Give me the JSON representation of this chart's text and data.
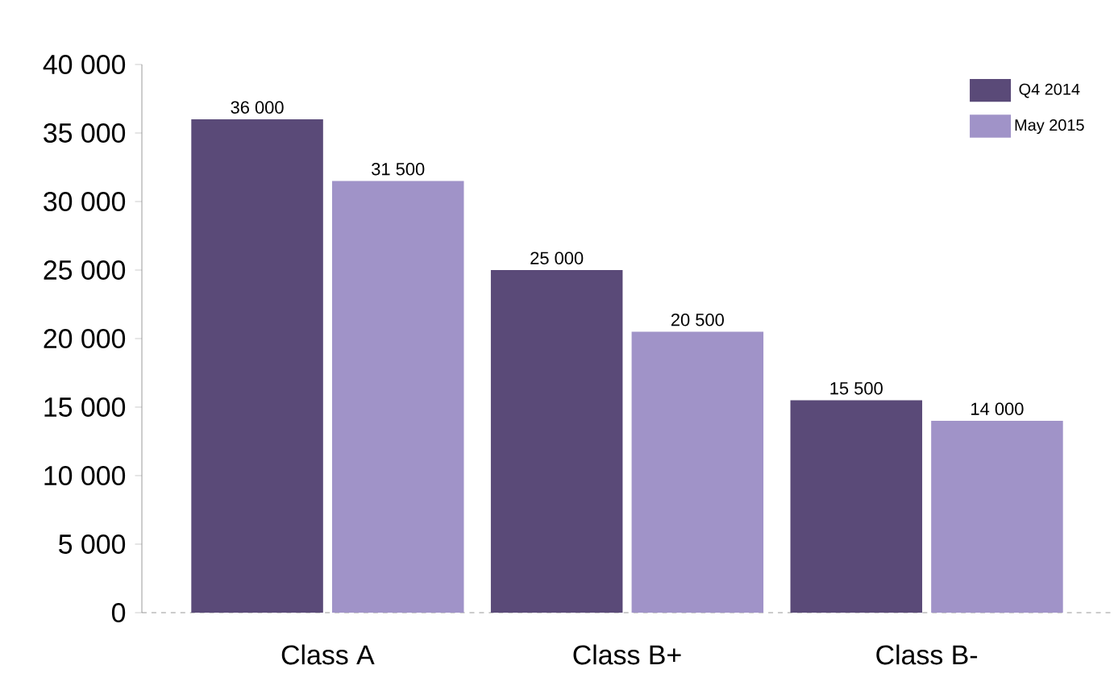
{
  "chart_data": {
    "type": "bar",
    "categories": [
      "Class A",
      "Class B+",
      "Class B-"
    ],
    "series": [
      {
        "name": "Q4 2014",
        "color": "#5a4a78",
        "values": [
          36000,
          25000,
          15500
        ],
        "value_labels": [
          "36 000",
          "25 000",
          "15 500"
        ]
      },
      {
        "name": "May 2015",
        "color": "#a093c8",
        "values": [
          31500,
          20500,
          14000
        ],
        "value_labels": [
          "31 500",
          "20 500",
          "14 000"
        ]
      }
    ],
    "ylim": [
      0,
      40000
    ],
    "yticks": [
      0,
      {
        "value": 5000,
        "label": "5 000"
      },
      {
        "value": 10000,
        "label": "10 000"
      },
      {
        "value": 15000,
        "label": "15 000"
      },
      {
        "value": 20000,
        "label": "20 000"
      },
      {
        "value": 25000,
        "label": "25 000"
      },
      {
        "value": 30000,
        "label": "30 000"
      },
      {
        "value": 35000,
        "label": "35 000"
      },
      {
        "value": 40000,
        "label": "40 000"
      }
    ],
    "legend": "top right",
    "grid": false
  }
}
